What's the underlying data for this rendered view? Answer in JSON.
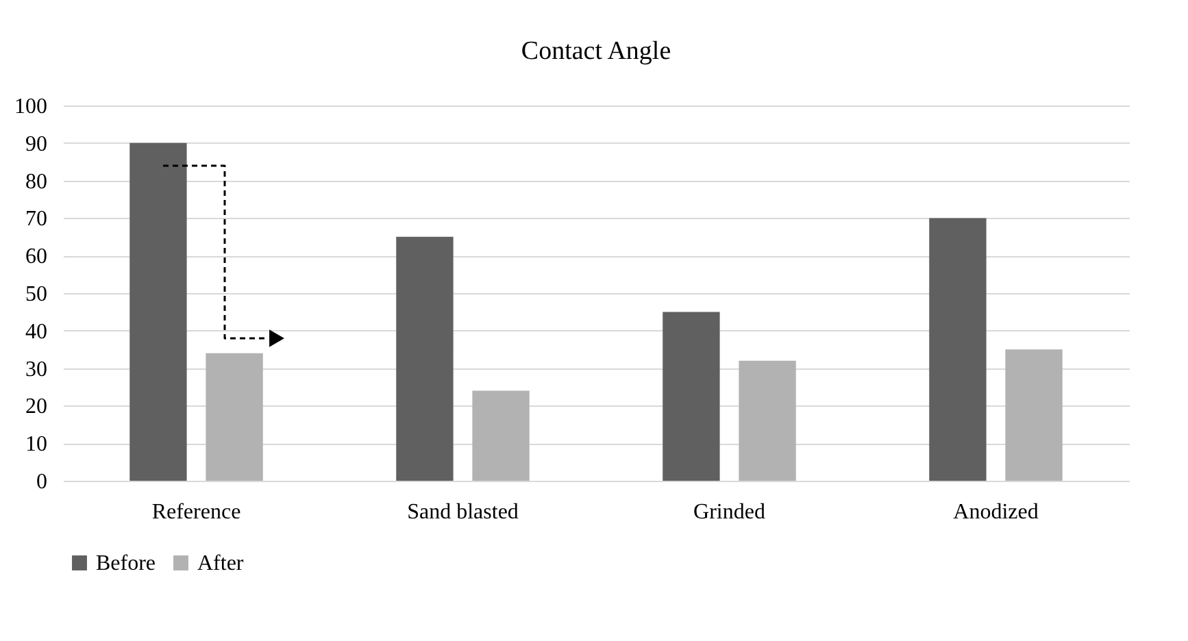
{
  "chart_data": {
    "type": "bar",
    "title": "Contact Angle",
    "categories": [
      "Reference",
      "Sand blasted",
      "Grinded",
      "Anodized"
    ],
    "series": [
      {
        "name": "Before",
        "color": "#606060",
        "values": [
          90,
          65,
          45,
          70
        ]
      },
      {
        "name": "After",
        "color": "#b2b2b2",
        "values": [
          34,
          24,
          32,
          35
        ]
      }
    ],
    "ylim": [
      0,
      100
    ],
    "yticks": [
      0,
      10,
      20,
      30,
      40,
      50,
      60,
      70,
      80,
      90,
      100
    ],
    "grid": "y",
    "legend": "bottom"
  }
}
